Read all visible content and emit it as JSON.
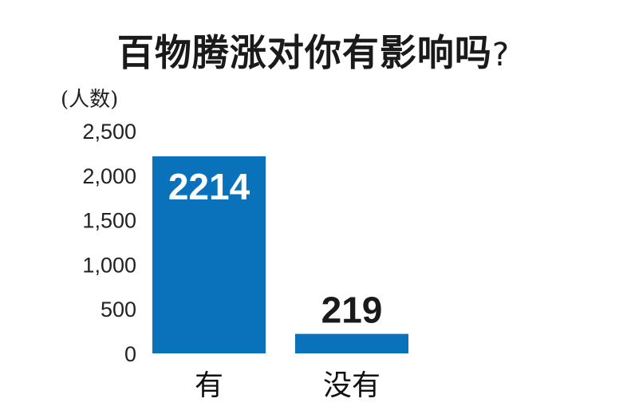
{
  "chart_data": {
    "type": "bar",
    "title": "百物腾涨对你有影响吗",
    "title_mark": "?",
    "ylabel": "(人数)",
    "xlabel": "",
    "categories": [
      "有",
      "没有"
    ],
    "values": [
      2214,
      219
    ],
    "data_labels": [
      "2214",
      "219"
    ],
    "ylim": [
      0,
      2500
    ],
    "yticks": [
      0,
      500,
      1000,
      1500,
      2000,
      2500
    ],
    "ytick_labels": [
      "0",
      "500",
      "1,000",
      "1,500",
      "2,000",
      "2,500"
    ],
    "bar_color": "#0a72bb",
    "grid": false,
    "legend": "none"
  }
}
